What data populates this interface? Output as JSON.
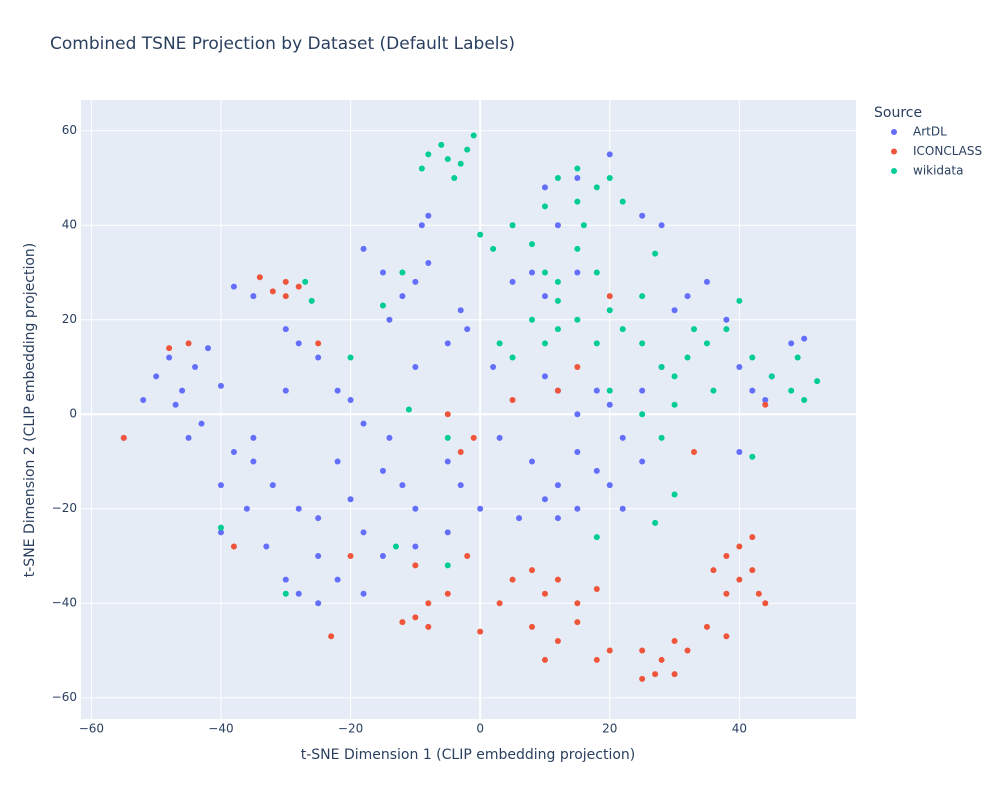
{
  "chart_data": {
    "type": "scatter",
    "title": "Combined TSNE Projection by Dataset (Default Labels)",
    "x_label": "t-SNE Dimension 1 (CLIP embedding projection)",
    "y_label": "t-SNE Dimension 2 (CLIP embedding projection)",
    "legend_title": "Source",
    "legend_position": "top-right",
    "grid": true,
    "xlim": [
      -61.6,
      58.0
    ],
    "ylim": [
      -64.5,
      66.5
    ],
    "xticks": [
      {
        "value": -60,
        "label": "−60"
      },
      {
        "value": -40,
        "label": "−40"
      },
      {
        "value": -20,
        "label": "−20"
      },
      0,
      20,
      40
    ],
    "yticks": [
      {
        "value": -60,
        "label": "−60"
      },
      {
        "value": -40,
        "label": "−40"
      },
      {
        "value": -20,
        "label": "−20"
      },
      0,
      20,
      40,
      60
    ],
    "series": [
      {
        "name": "ArtDL",
        "color": "#636efa",
        "x": [
          -55,
          -50,
          -48,
          -46,
          -44,
          -42,
          -40,
          -47,
          -52,
          -43,
          -38,
          -40,
          -36,
          -33,
          -30,
          -28,
          -25,
          -32,
          -28,
          -25,
          -22,
          -20,
          -18,
          -15,
          -12,
          -10,
          -14,
          -18,
          -20,
          -22,
          -18,
          -15,
          -10,
          -5,
          -3,
          0,
          -5,
          -35,
          -30,
          -28,
          -25,
          -30,
          -35,
          -38,
          -15,
          -12,
          -10,
          -8,
          -14,
          -18,
          -5,
          -3,
          -2,
          2,
          5,
          8,
          10,
          3,
          8,
          10,
          12,
          15,
          6,
          12,
          15,
          18,
          20,
          22,
          25,
          22,
          15,
          12,
          10,
          18,
          20,
          25,
          28,
          15,
          12,
          10,
          15,
          20,
          25,
          28,
          32,
          35,
          30,
          38,
          40,
          42,
          44,
          45,
          48,
          50,
          40,
          -8,
          -9,
          -10,
          -25,
          -40,
          -35,
          -45,
          -22
        ],
        "y": [
          -5,
          8,
          12,
          5,
          10,
          14,
          6,
          2,
          3,
          -2,
          -8,
          -15,
          -20,
          -28,
          -35,
          -38,
          -30,
          -15,
          -20,
          -22,
          -10,
          -18,
          -25,
          -12,
          -15,
          -20,
          -5,
          -2,
          3,
          -35,
          -38,
          -30,
          -28,
          -25,
          -15,
          -20,
          -10,
          -5,
          5,
          15,
          12,
          18,
          25,
          27,
          30,
          25,
          28,
          32,
          20,
          35,
          15,
          22,
          18,
          10,
          28,
          30,
          25,
          -5,
          -10,
          -18,
          -15,
          -8,
          -22,
          -22,
          -20,
          -12,
          -15,
          -5,
          -10,
          -20,
          0,
          5,
          8,
          5,
          2,
          5,
          10,
          30,
          40,
          48,
          50,
          55,
          42,
          40,
          25,
          28,
          22,
          20,
          10,
          5,
          3,
          8,
          15,
          16,
          -8,
          42,
          40,
          10,
          -40,
          -25,
          -10,
          -5,
          5
        ]
      },
      {
        "name": "ICONCLASS",
        "color": "#EF553B",
        "x": [
          -55,
          -30,
          -32,
          -28,
          -30,
          -34,
          -45,
          -48,
          -25,
          -20,
          -10,
          -8,
          -5,
          -8,
          -12,
          -2,
          -5,
          -3,
          0,
          3,
          5,
          8,
          10,
          12,
          15,
          8,
          12,
          15,
          18,
          10,
          20,
          18,
          25,
          28,
          30,
          32,
          27,
          25,
          30,
          35,
          38,
          38,
          40,
          42,
          40,
          43,
          38,
          44,
          36,
          42,
          12,
          15,
          20,
          -23,
          33,
          44,
          -38,
          -1,
          -10,
          5
        ],
        "y": [
          -5,
          28,
          26,
          27,
          25,
          29,
          15,
          14,
          15,
          -30,
          -43,
          -40,
          -38,
          -45,
          -44,
          -30,
          0,
          -8,
          -46,
          -40,
          -35,
          -33,
          -38,
          -35,
          -40,
          -45,
          -48,
          -44,
          -37,
          -52,
          -50,
          -52,
          -50,
          -52,
          -48,
          -50,
          -55,
          -56,
          -55,
          -45,
          -47,
          -30,
          -28,
          -33,
          -35,
          -38,
          -38,
          -40,
          -33,
          -26,
          5,
          10,
          25,
          -47,
          -8,
          2,
          -28,
          -5,
          -32,
          3
        ]
      },
      {
        "name": "wikidata",
        "color": "#00cc96",
        "x": [
          -8,
          -5,
          -3,
          -6,
          -2,
          -1,
          -9,
          -4,
          0,
          2,
          5,
          8,
          10,
          12,
          15,
          18,
          20,
          15,
          22,
          10,
          12,
          15,
          18,
          20,
          25,
          22,
          8,
          10,
          5,
          12,
          15,
          18,
          25,
          28,
          30,
          32,
          35,
          38,
          40,
          42,
          45,
          48,
          50,
          52,
          49,
          30,
          25,
          20,
          28,
          30,
          27,
          -12,
          -15,
          -20,
          -27,
          -26,
          -5,
          -5,
          -30,
          -13,
          -11,
          -40,
          42,
          18,
          3,
          36,
          12,
          16,
          27,
          33
        ],
        "y": [
          55,
          54,
          53,
          57,
          56,
          59,
          52,
          50,
          38,
          35,
          40,
          36,
          44,
          50,
          52,
          48,
          50,
          45,
          45,
          30,
          28,
          35,
          30,
          22,
          25,
          18,
          20,
          15,
          12,
          18,
          20,
          15,
          15,
          10,
          8,
          12,
          15,
          18,
          24,
          12,
          8,
          5,
          3,
          7,
          12,
          2,
          0,
          5,
          -5,
          -17,
          -23,
          30,
          23,
          12,
          28,
          24,
          -5,
          -32,
          -38,
          -28,
          1,
          -24,
          -9,
          -26,
          15,
          5,
          24,
          40,
          34,
          18
        ]
      }
    ]
  }
}
